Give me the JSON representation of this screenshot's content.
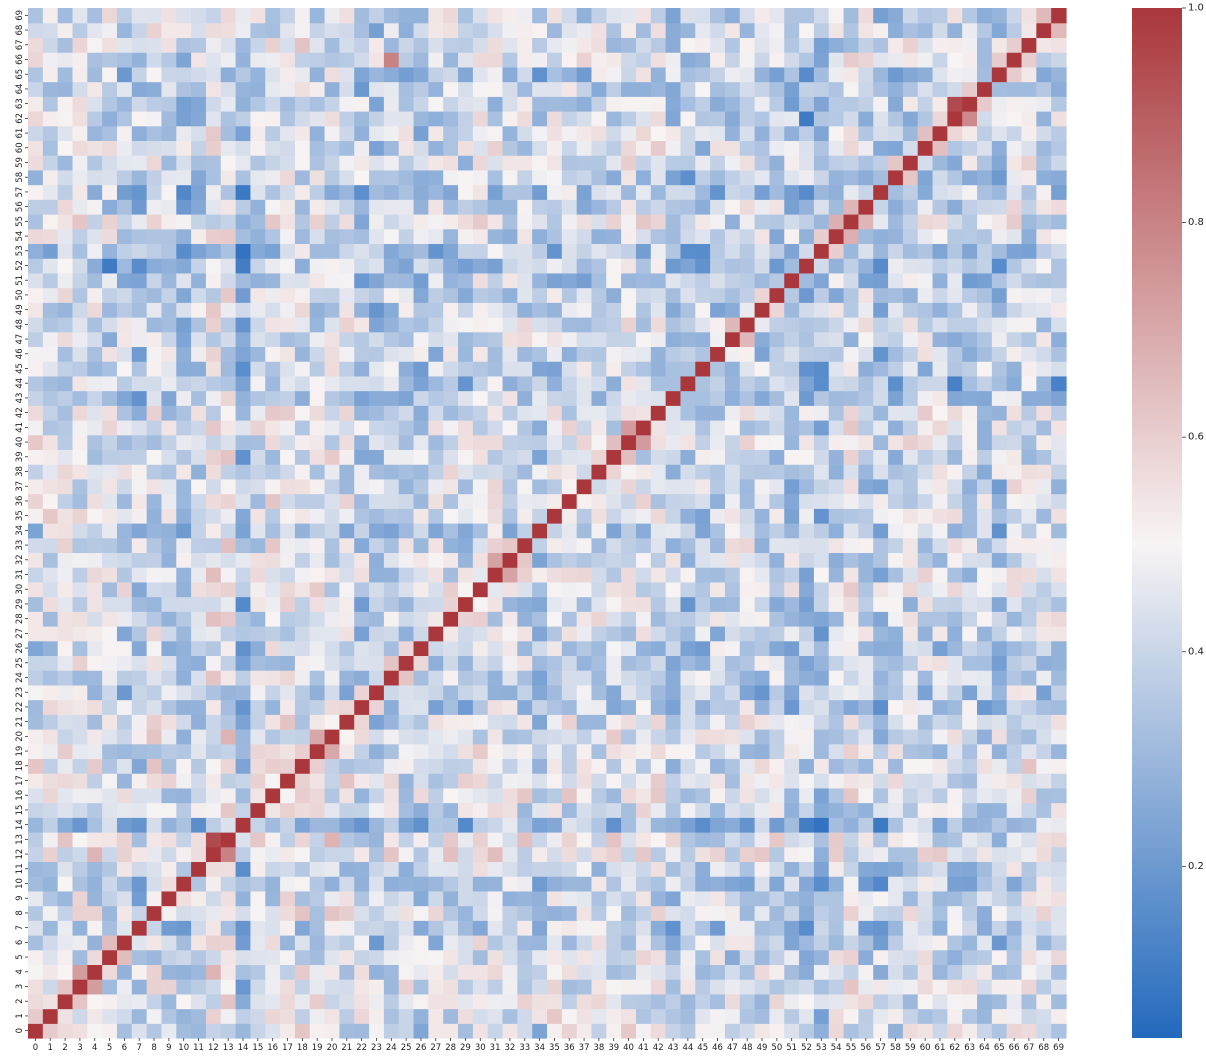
{
  "chart_data": {
    "type": "heatmap",
    "title": "",
    "xlabel": "",
    "ylabel": "",
    "x_ticks": [
      "0",
      "1",
      "2",
      "3",
      "4",
      "5",
      "6",
      "7",
      "8",
      "9",
      "10",
      "11",
      "12",
      "13",
      "14",
      "15",
      "16",
      "17",
      "18",
      "19",
      "20",
      "21",
      "22",
      "23",
      "24",
      "25",
      "26",
      "27",
      "28",
      "29",
      "30",
      "31",
      "32",
      "33",
      "34",
      "35",
      "36",
      "37",
      "38",
      "39",
      "40",
      "41",
      "42",
      "43",
      "44",
      "45",
      "46",
      "47",
      "48",
      "49",
      "50",
      "51",
      "52",
      "53",
      "54",
      "55",
      "56",
      "57",
      "58",
      "59",
      "60",
      "61",
      "62",
      "63",
      "64",
      "65",
      "66",
      "67",
      "68",
      "69"
    ],
    "y_ticks": [
      "0",
      "1",
      "2",
      "3",
      "4",
      "5",
      "6",
      "7",
      "8",
      "9",
      "10",
      "11",
      "12",
      "13",
      "14",
      "15",
      "16",
      "17",
      "18",
      "19",
      "20",
      "21",
      "22",
      "23",
      "24",
      "25",
      "26",
      "27",
      "28",
      "29",
      "30",
      "31",
      "32",
      "33",
      "34",
      "35",
      "36",
      "37",
      "38",
      "39",
      "40",
      "41",
      "42",
      "43",
      "44",
      "45",
      "46",
      "47",
      "48",
      "49",
      "50",
      "51",
      "52",
      "53",
      "54",
      "55",
      "56",
      "57",
      "58",
      "59",
      "60",
      "61",
      "62",
      "63",
      "64",
      "65",
      "66",
      "67",
      "68",
      "69"
    ],
    "y_order": "bottom-to-top",
    "matrix_size": 70,
    "diagonal_value": 1.0,
    "vmin": 0.04,
    "vmax": 1.0,
    "colormap": "vlag (blue-white-red)",
    "colormap_stops": [
      "#2369bd",
      "#f8f4f4",
      "#a9373b"
    ],
    "colorbar": {
      "ticks": [
        "0.2",
        "0.4",
        "0.6",
        "0.8",
        "1.0"
      ],
      "tick_values": [
        0.2,
        0.4,
        0.6,
        0.8,
        1.0
      ],
      "location": "right"
    },
    "highlighted_off_diagonal": [
      {
        "x": 12,
        "y": 13,
        "value": 0.95
      },
      {
        "x": 13,
        "y": 12,
        "value": 0.8
      },
      {
        "x": 62,
        "y": 63,
        "value": 0.95
      },
      {
        "x": 63,
        "y": 62,
        "value": 0.78
      },
      {
        "x": 24,
        "y": 66,
        "value": 0.8
      },
      {
        "x": 52,
        "y": 62,
        "value": 0.1
      },
      {
        "x": 5,
        "y": 52,
        "value": 0.1
      },
      {
        "x": 62,
        "y": 44,
        "value": 0.12
      },
      {
        "x": 69,
        "y": 44,
        "value": 0.12
      }
    ],
    "row_means_approx": [
      0.45,
      0.5,
      0.5,
      0.5,
      0.48,
      0.42,
      0.38,
      0.3,
      0.45,
      0.4,
      0.3,
      0.4,
      0.55,
      0.55,
      0.2,
      0.42,
      0.5,
      0.5,
      0.5,
      0.48,
      0.5,
      0.45,
      0.35,
      0.3,
      0.42,
      0.4,
      0.35,
      0.4,
      0.42,
      0.38,
      0.48,
      0.45,
      0.45,
      0.45,
      0.3,
      0.42,
      0.45,
      0.4,
      0.45,
      0.42,
      0.48,
      0.48,
      0.45,
      0.35,
      0.3,
      0.35,
      0.38,
      0.4,
      0.42,
      0.38,
      0.38,
      0.35,
      0.3,
      0.25,
      0.4,
      0.45,
      0.4,
      0.3,
      0.35,
      0.42,
      0.45,
      0.4,
      0.4,
      0.38,
      0.35,
      0.3,
      0.48,
      0.45,
      0.45,
      0.42
    ]
  }
}
